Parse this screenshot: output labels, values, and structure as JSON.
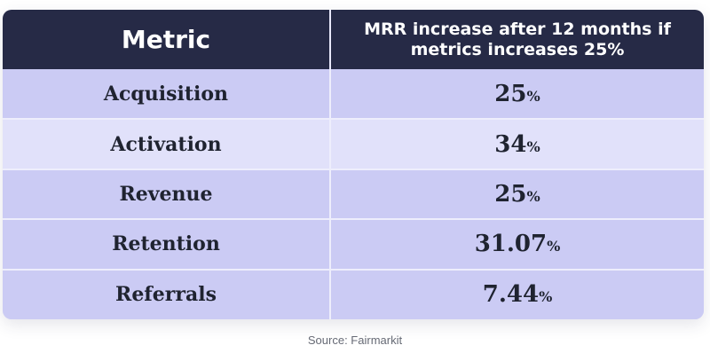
{
  "chart_data": {
    "type": "table",
    "columns": [
      "Metric",
      "MRR increase after 12 months if metrics increases 25%"
    ],
    "rows": [
      {
        "metric": "Acquisition",
        "value": "25",
        "unit": "%"
      },
      {
        "metric": "Activation",
        "value": "34",
        "unit": "%"
      },
      {
        "metric": "Revenue",
        "value": "25",
        "unit": "%"
      },
      {
        "metric": "Retention",
        "value": "31.07",
        "unit": "%"
      },
      {
        "metric": "Referrals",
        "value": "7.44",
        "unit": "%"
      }
    ],
    "source": "Source: Fairmarkit"
  },
  "colors": {
    "header_bg": "#262a46",
    "row_dark": "#cbcbf4",
    "row_light": "#e1e1fa",
    "text": "#1f2330"
  }
}
